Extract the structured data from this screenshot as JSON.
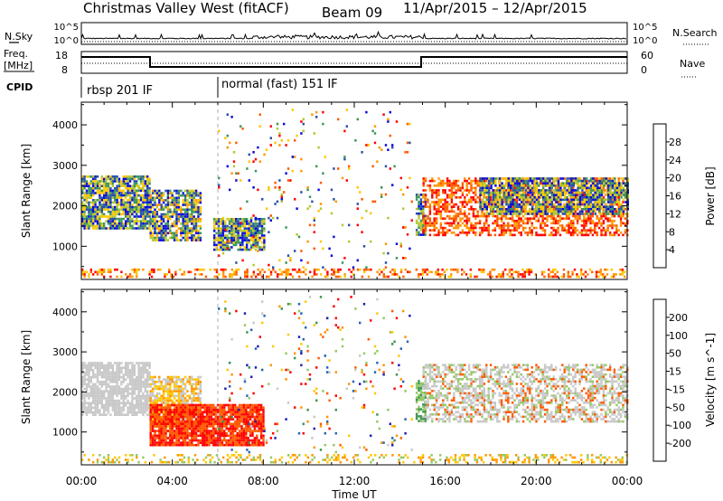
{
  "header": {
    "title": "Christmas Valley West (fitACF)",
    "beam": "Beam 09",
    "date_range": "11/Apr/2015 – 12/Apr/2015"
  },
  "top_panels": {
    "nsky_label": "N.Sky",
    "nsearch_label": "N.Search",
    "nsky_ticks": [
      "10^5",
      "10^0"
    ],
    "nsearch_ticks": [
      "10^5",
      "10^0"
    ],
    "freq_label_1": "Freq.",
    "freq_label_2": "[MHz]",
    "freq_ticks": [
      "18",
      "8"
    ],
    "nave_label": "Nave",
    "nave_ticks": [
      "60",
      "0"
    ],
    "cpid_label": "CPID",
    "cpid_segments": [
      {
        "label": "rbsp 201 IF",
        "start_hour": 0
      },
      {
        "label": "normal (fast) 151 IF",
        "start_hour": 6
      }
    ]
  },
  "chart_data": [
    {
      "type": "heatmap",
      "name": "power",
      "xlabel": "Time UT",
      "ylabel": "Slant Range [km]",
      "x_range_hours": [
        0,
        24
      ],
      "ylim": [
        180,
        4560
      ],
      "y_ticks": [
        1000,
        2000,
        3000,
        4000
      ],
      "x_ticks": [
        "00:00",
        "04:00",
        "08:00",
        "12:00",
        "16:00",
        "20:00",
        "00:00"
      ],
      "colorbar": {
        "label": "Power [dB]",
        "ticks": [
          "28",
          "24",
          "20",
          "16",
          "12",
          "8",
          "4"
        ],
        "colors": [
          "#ff0000",
          "#ff5a00",
          "#ff9600",
          "#ffc800",
          "#b4c832",
          "#3c965a",
          "#2850aa",
          "#0a0adc"
        ]
      },
      "regions": [
        {
          "t0": 0.0,
          "t1": 3.0,
          "r0": 1450,
          "r1": 2750,
          "levels": [
            3,
            4,
            5,
            6,
            7
          ],
          "density": 0.85
        },
        {
          "t0": 3.0,
          "t1": 5.2,
          "r0": 1150,
          "r1": 2400,
          "levels": [
            2,
            3,
            4,
            5,
            6,
            7
          ],
          "density": 0.8
        },
        {
          "t0": 5.8,
          "t1": 8.0,
          "r0": 900,
          "r1": 1700,
          "levels": [
            3,
            4,
            5,
            6,
            7
          ],
          "density": 0.85
        },
        {
          "t0": 14.7,
          "t1": 15.1,
          "r0": 1300,
          "r1": 2300,
          "levels": [
            4,
            5,
            6,
            7
          ],
          "density": 0.7
        },
        {
          "t0": 15.0,
          "t1": 24.0,
          "r0": 1250,
          "r1": 2700,
          "levels": [
            0,
            1,
            2
          ],
          "density": 0.55
        },
        {
          "t0": 17.5,
          "t1": 24.0,
          "r0": 1800,
          "r1": 2700,
          "levels": [
            3,
            4,
            5,
            6,
            7
          ],
          "density": 0.8
        },
        {
          "t0": 0.0,
          "t1": 24.0,
          "r0": 250,
          "r1": 450,
          "levels": [
            0,
            1,
            2,
            3
          ],
          "density": 0.35
        },
        {
          "t0": 6.0,
          "t1": 14.5,
          "r0": 500,
          "r1": 4400,
          "levels": [
            0,
            1,
            2,
            3,
            4,
            5,
            6,
            7
          ],
          "density": 0.04
        }
      ]
    },
    {
      "type": "heatmap",
      "name": "velocity",
      "xlabel": "Time UT",
      "ylabel": "Slant Range [km]",
      "x_range_hours": [
        0,
        24
      ],
      "ylim": [
        180,
        4560
      ],
      "y_ticks": [
        1000,
        2000,
        3000,
        4000
      ],
      "x_ticks": [
        "00:00",
        "04:00",
        "08:00",
        "12:00",
        "16:00",
        "20:00",
        "00:00"
      ],
      "colorbar": {
        "label": "Velocity [m s^-1]",
        "ticks": [
          "200",
          "100",
          "50",
          "15",
          "-15",
          "-50",
          "-100",
          "-200"
        ],
        "colors": [
          "#1e1eb4",
          "#2864b4",
          "#3c9650",
          "#96c864",
          "#c8c8c8",
          "#ffc800",
          "#ff9600",
          "#ff5a00",
          "#ff0000"
        ]
      },
      "regions": [
        {
          "t0": 0.0,
          "t1": 3.0,
          "r0": 1450,
          "r1": 2750,
          "levels": [
            4
          ],
          "density": 0.8
        },
        {
          "t0": 3.0,
          "t1": 5.2,
          "r0": 1150,
          "r1": 2400,
          "levels": [
            5,
            6,
            4
          ],
          "density": 0.75
        },
        {
          "t0": 3.0,
          "t1": 8.0,
          "r0": 700,
          "r1": 1700,
          "levels": [
            8,
            7
          ],
          "density": 0.9
        },
        {
          "t0": 14.7,
          "t1": 15.1,
          "r0": 1300,
          "r1": 2300,
          "levels": [
            2,
            3
          ],
          "density": 0.7
        },
        {
          "t0": 15.0,
          "t1": 24.0,
          "r0": 1250,
          "r1": 2700,
          "levels": [
            4,
            4,
            4,
            3,
            7
          ],
          "density": 0.55
        },
        {
          "t0": 0.0,
          "t1": 24.0,
          "r0": 250,
          "r1": 450,
          "levels": [
            5,
            6,
            3
          ],
          "density": 0.3
        },
        {
          "t0": 6.0,
          "t1": 14.5,
          "r0": 500,
          "r1": 4400,
          "levels": [
            0,
            1,
            2,
            3,
            4,
            5,
            6,
            7,
            8
          ],
          "density": 0.04
        }
      ]
    }
  ]
}
